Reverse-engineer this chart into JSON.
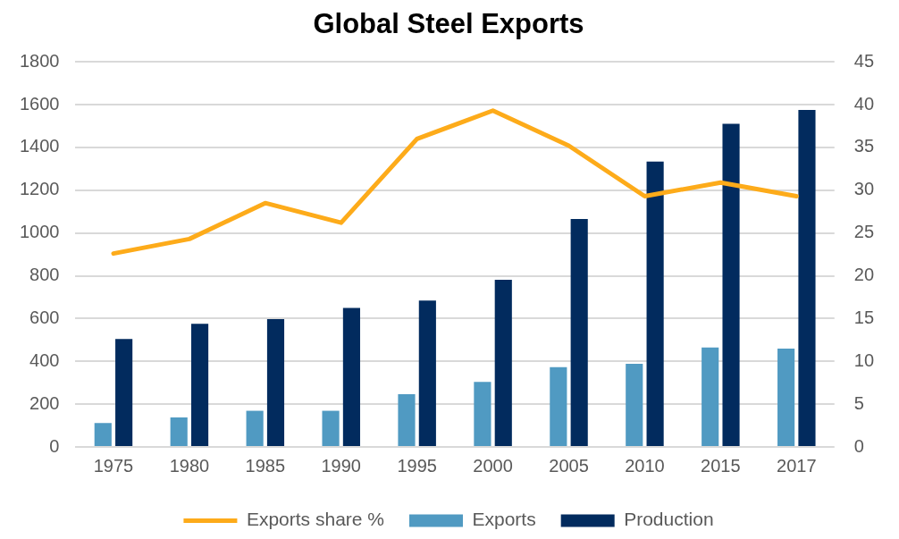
{
  "chart_data": {
    "type": "bar",
    "title": "Global Steel Exports",
    "categories": [
      "1975",
      "1980",
      "1985",
      "1990",
      "1995",
      "2000",
      "2005",
      "2010",
      "2015",
      "2017"
    ],
    "series": [
      {
        "name": "Exports",
        "color": "#509ac2",
        "values": [
          112,
          138,
          169,
          169,
          246,
          304,
          373,
          389,
          465,
          460
        ]
      },
      {
        "name": "Production",
        "color": "#022b5e",
        "values": [
          505,
          576,
          597,
          650,
          684,
          781,
          1065,
          1334,
          1510,
          1575
        ]
      },
      {
        "name": "Exports share %",
        "color": "#fdab1a",
        "type": "line",
        "axis": "y2",
        "values": [
          22.6,
          24.3,
          28.5,
          26.2,
          36.0,
          39.3,
          35.2,
          29.3,
          30.9,
          29.3
        ]
      }
    ],
    "ylim": [
      0,
      1800
    ],
    "yticks": [
      0,
      200,
      400,
      600,
      800,
      1000,
      1200,
      1400,
      1600,
      1800
    ],
    "y2lim": [
      0,
      45
    ],
    "y2ticks": [
      0,
      5,
      10,
      15,
      20,
      25,
      30,
      35,
      40,
      45
    ],
    "grid": "y",
    "legend": "bottom",
    "marker": "none"
  }
}
